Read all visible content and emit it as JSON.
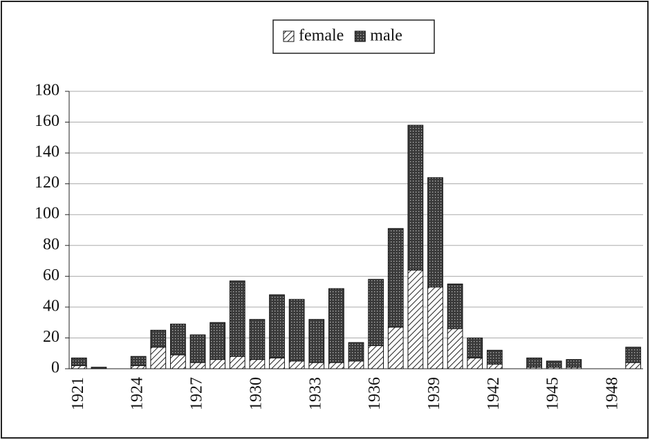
{
  "chart_data": {
    "type": "stacked_bar",
    "categories": [
      "1921",
      null,
      null,
      "1924",
      null,
      null,
      "1927",
      null,
      null,
      "1930",
      null,
      null,
      "1933",
      null,
      null,
      "1936",
      null,
      null,
      "1939",
      null,
      null,
      "1942",
      null,
      null,
      "1945",
      null,
      null,
      "1948",
      null
    ],
    "series": [
      {
        "name": "female",
        "color": "#ffffff",
        "pattern": "hatch",
        "values": [
          2,
          0,
          0,
          2,
          14,
          9,
          4,
          6,
          8,
          6,
          7,
          5,
          4,
          4,
          5,
          15,
          27,
          64,
          53,
          26,
          7,
          3,
          0,
          1,
          1,
          1,
          0,
          0,
          4
        ]
      },
      {
        "name": "male",
        "color": "#3a3a3a",
        "pattern": "dots",
        "values": [
          5,
          1,
          0,
          6,
          11,
          20,
          18,
          24,
          49,
          26,
          41,
          40,
          28,
          48,
          12,
          43,
          64,
          94,
          71,
          29,
          13,
          9,
          0,
          6,
          4,
          5,
          0,
          0,
          10
        ]
      }
    ],
    "ylim": [
      0,
      180
    ],
    "yticks": [
      0,
      20,
      40,
      60,
      80,
      100,
      120,
      140,
      160,
      180
    ],
    "grid": true,
    "legend": "top"
  }
}
